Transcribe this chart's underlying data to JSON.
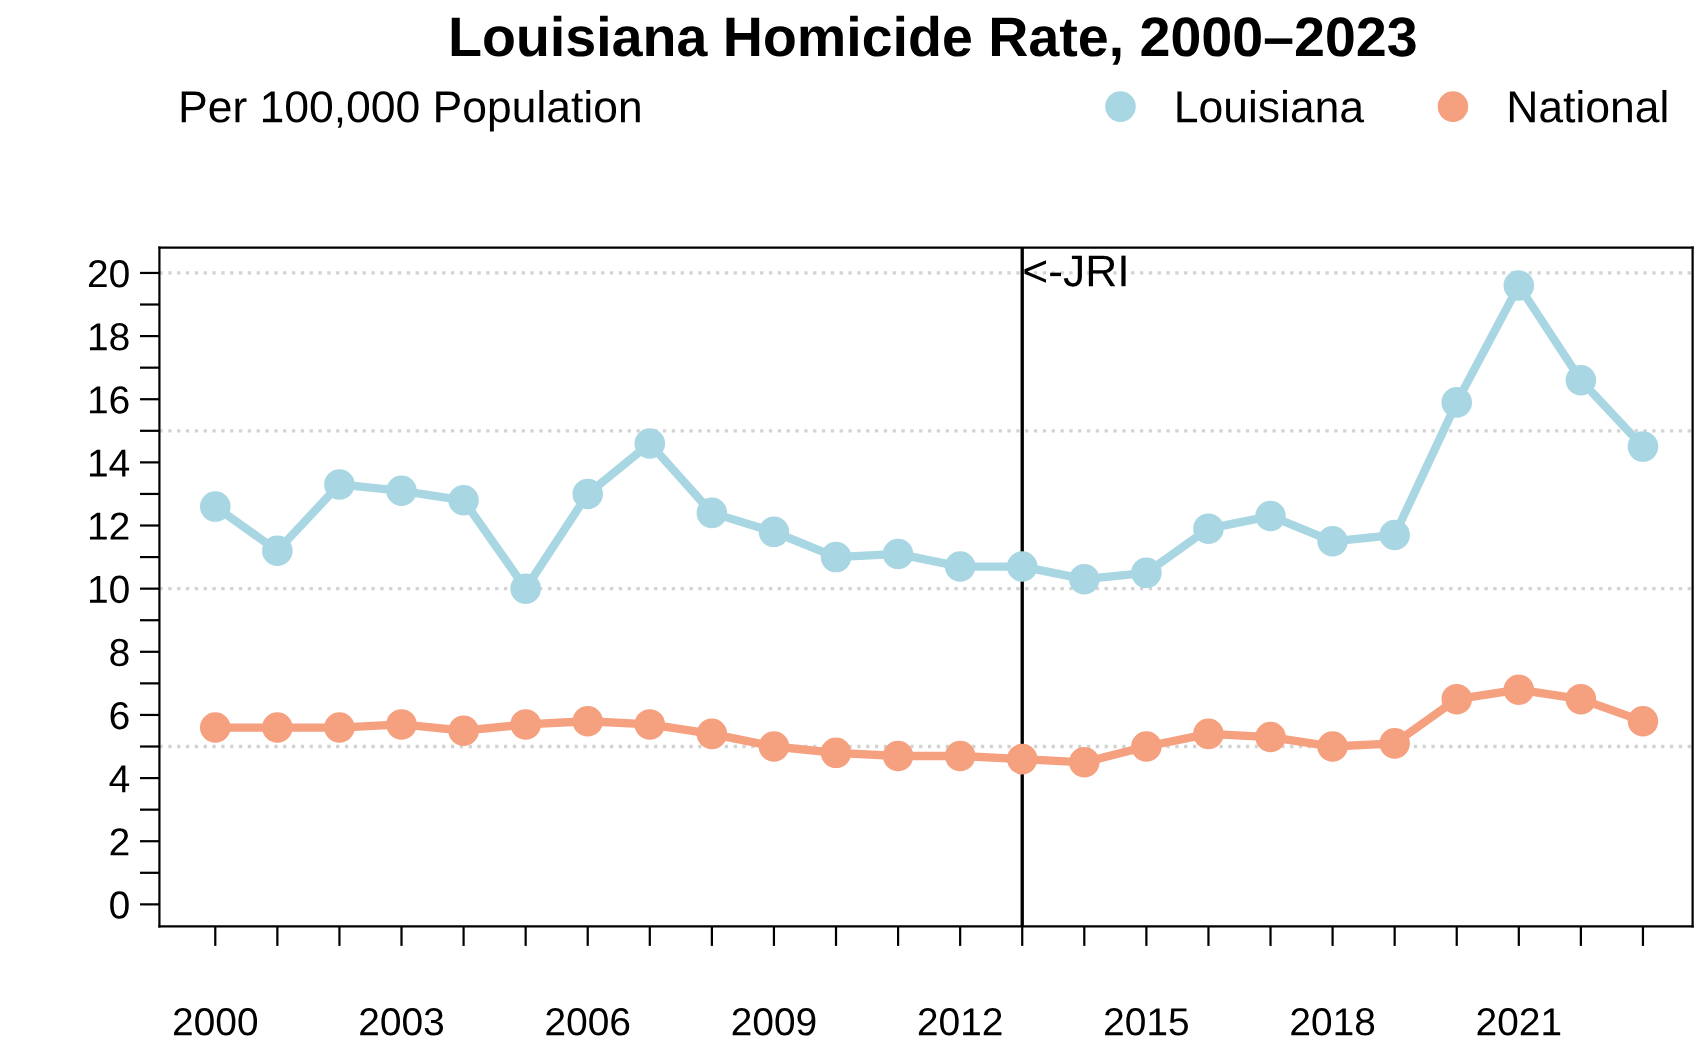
{
  "chart_data": {
    "type": "line",
    "title": "Louisiana Homicide Rate, 2000–2023",
    "subtitle": "Per 100,000 Population",
    "x": [
      2000,
      2001,
      2002,
      2003,
      2004,
      2005,
      2006,
      2007,
      2008,
      2009,
      2010,
      2011,
      2012,
      2013,
      2014,
      2015,
      2016,
      2017,
      2018,
      2019,
      2020,
      2021,
      2022,
      2023
    ],
    "series": [
      {
        "name": "Louisiana",
        "color": "#a9d6e3",
        "values": [
          12.6,
          11.2,
          13.3,
          13.1,
          12.8,
          10.0,
          13.0,
          14.6,
          12.4,
          11.8,
          11.0,
          11.1,
          10.7,
          10.7,
          10.3,
          10.5,
          11.9,
          12.3,
          11.5,
          11.7,
          15.9,
          19.6,
          16.6,
          14.5
        ]
      },
      {
        "name": "National",
        "color": "#f5a07f",
        "values": [
          5.6,
          5.6,
          5.6,
          5.7,
          5.5,
          5.7,
          5.8,
          5.7,
          5.4,
          5.0,
          4.8,
          4.7,
          4.7,
          4.6,
          4.5,
          5.0,
          5.4,
          5.3,
          5.0,
          5.1,
          6.5,
          6.8,
          6.5,
          5.8
        ]
      }
    ],
    "xlim": [
      1999.1,
      2023.8
    ],
    "ylim": [
      -0.7,
      20.8
    ],
    "xticks": [
      2000,
      {
        "value": 2001,
        "label": null
      },
      {
        "value": 2002,
        "label": null
      },
      2003,
      {
        "value": 2004,
        "label": null
      },
      {
        "value": 2005,
        "label": null
      },
      2006,
      {
        "value": 2007,
        "label": null
      },
      {
        "value": 2008,
        "label": null
      },
      2009,
      {
        "value": 2010,
        "label": null
      },
      {
        "value": 2011,
        "label": null
      },
      2012,
      {
        "value": 2013,
        "label": null
      },
      {
        "value": 2014,
        "label": null
      },
      2015,
      {
        "value": 2016,
        "label": null
      },
      {
        "value": 2017,
        "label": null
      },
      2018,
      {
        "value": 2019,
        "label": null
      },
      {
        "value": 2020,
        "label": null
      },
      2021,
      {
        "value": 2022,
        "label": null
      },
      {
        "value": 2023,
        "label": null
      }
    ],
    "yticks": [
      0,
      {
        "value": 1,
        "label": null
      },
      2,
      {
        "value": 3,
        "label": null
      },
      4,
      {
        "value": 5,
        "label": null
      },
      6,
      {
        "value": 7,
        "label": null
      },
      8,
      {
        "value": 9,
        "label": null
      },
      10,
      {
        "value": 11,
        "label": null
      },
      12,
      {
        "value": 13,
        "label": null
      },
      14,
      {
        "value": 15,
        "label": null
      },
      16,
      {
        "value": 17,
        "label": null
      },
      18,
      {
        "value": 19,
        "label": null
      },
      20
    ],
    "ref_lines": [
      {
        "axis": "y",
        "value": 5,
        "label": null,
        "color": "#d3d3d3",
        "line_style": "dotted"
      },
      {
        "axis": "y",
        "value": 10,
        "label": null,
        "color": "#d3d3d3",
        "line_style": "dotted"
      },
      {
        "axis": "y",
        "value": 15,
        "label": null,
        "color": "#d3d3d3",
        "line_style": "dotted"
      },
      {
        "axis": "y",
        "value": 20,
        "label": null,
        "color": "#d3d3d3",
        "line_style": "dotted"
      },
      {
        "axis": "x",
        "value": 2013,
        "label": "<-JRI",
        "color": "#000000",
        "line_style": "solid"
      }
    ],
    "legend": "top right",
    "marker": "circle",
    "line_style": "solid",
    "grid": false
  }
}
